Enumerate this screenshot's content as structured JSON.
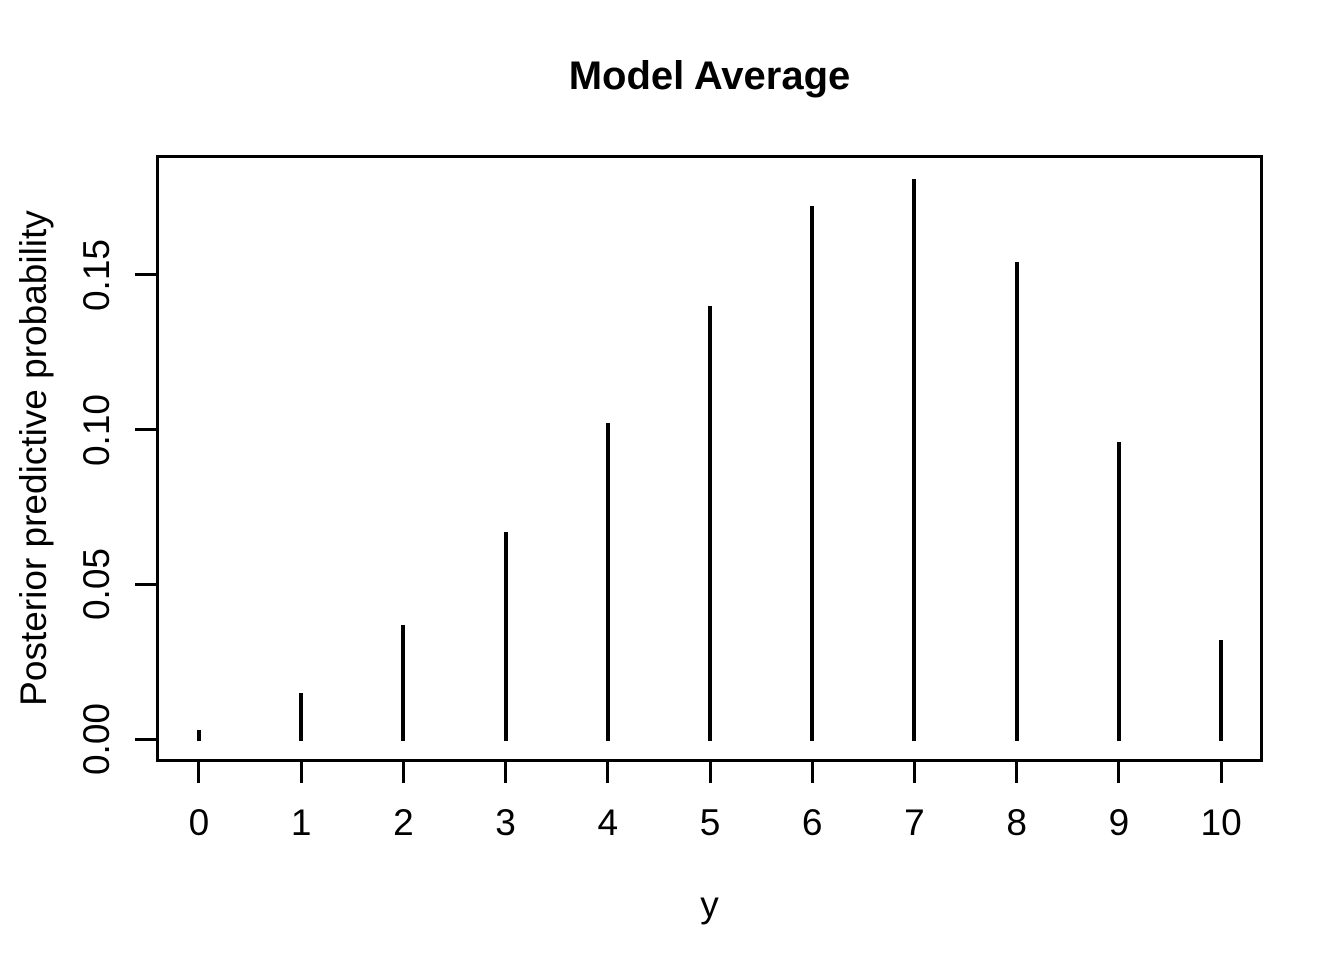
{
  "colors": {
    "background": "#ffffff",
    "foreground": "#000000"
  },
  "chart_data": {
    "type": "bar",
    "style": "vertical-spike-plot (R plot type='h')",
    "title": "Model Average",
    "xlabel": "y",
    "ylabel": "Posterior predictive probability",
    "x": [
      0,
      1,
      2,
      3,
      4,
      5,
      6,
      7,
      8,
      9,
      10
    ],
    "values": [
      0.003,
      0.015,
      0.037,
      0.067,
      0.102,
      0.14,
      0.172,
      0.181,
      0.154,
      0.096,
      0.032
    ],
    "series_name": "Posterior predictive probability",
    "x_tick_labels": [
      "0",
      "1",
      "2",
      "3",
      "4",
      "5",
      "6",
      "7",
      "8",
      "9",
      "10"
    ],
    "y_ticks": [
      {
        "value": 0.0,
        "label": "0.00"
      },
      {
        "value": 0.05,
        "label": "0.05"
      },
      {
        "value": 0.1,
        "label": "0.10"
      },
      {
        "value": 0.15,
        "label": "0.15"
      }
    ],
    "xlim": [
      -0.42,
      10.41
    ],
    "ylim": [
      -0.0073,
      0.1886
    ],
    "grid": false,
    "legend": false,
    "line_color": "#000000",
    "plot_background": "#ffffff"
  }
}
